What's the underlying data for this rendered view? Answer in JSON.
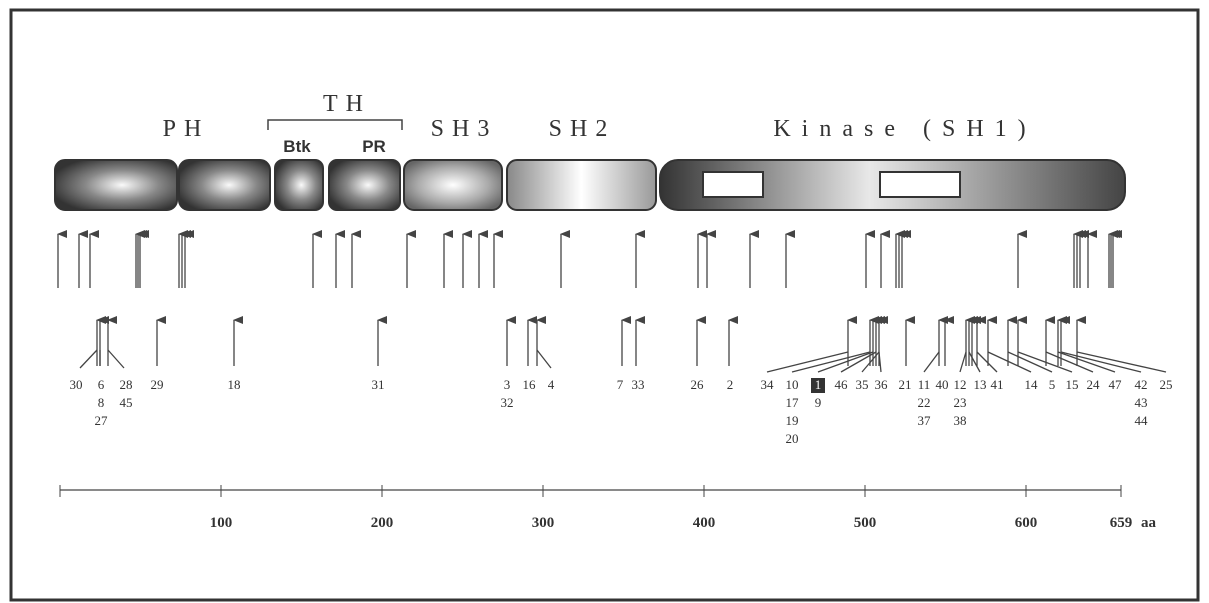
{
  "domains": {
    "ph": "PH",
    "th": "TH",
    "btk": "Btk",
    "pr": "PR",
    "sh3": "SH3",
    "sh2": "SH2",
    "kinase": "Kinase (SH1)"
  },
  "mutations": [
    [
      "30"
    ],
    [
      "6",
      "8",
      "27"
    ],
    [
      "28",
      "45"
    ],
    [
      "29"
    ],
    [
      "18"
    ],
    [
      "31"
    ],
    [
      "3",
      "32"
    ],
    [
      "16"
    ],
    [
      "4"
    ],
    [
      "7"
    ],
    [
      "33"
    ],
    [
      "26"
    ],
    [
      "2"
    ],
    [
      "34"
    ],
    [
      "10",
      "17",
      "19",
      "20"
    ],
    [
      "1",
      "9"
    ],
    [
      "46"
    ],
    [
      "35"
    ],
    [
      "36"
    ],
    [
      "21"
    ],
    [
      "11",
      "22",
      "37"
    ],
    [
      "40"
    ],
    [
      "12",
      "23",
      "38"
    ],
    [
      "13"
    ],
    [
      "41"
    ],
    [
      "14"
    ],
    [
      "5"
    ],
    [
      "15"
    ],
    [
      "24"
    ],
    [
      "47"
    ],
    [
      "42",
      "43",
      "44"
    ],
    [
      "25"
    ]
  ],
  "scale": {
    "ticks": [
      "100",
      "200",
      "300",
      "400",
      "500",
      "600",
      "659"
    ],
    "unit": "aa"
  }
}
